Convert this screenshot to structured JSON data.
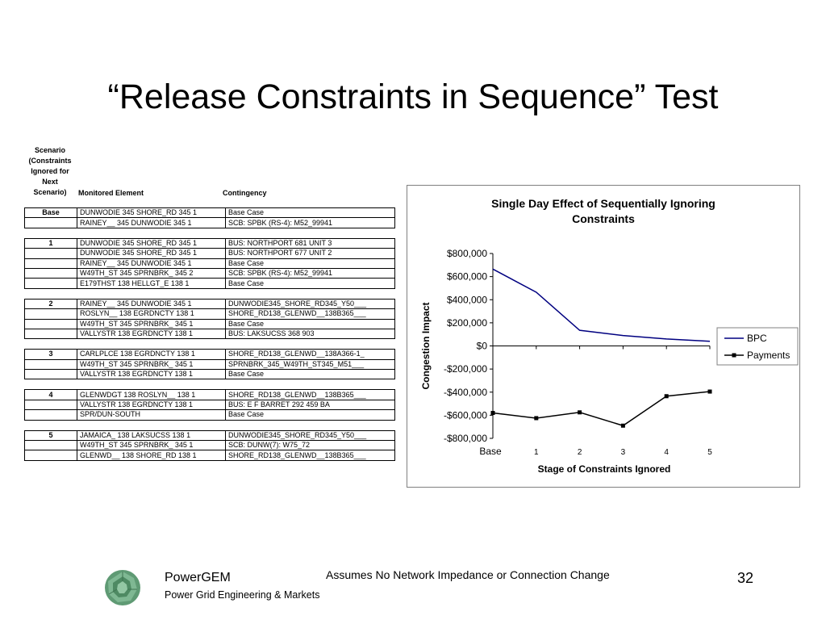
{
  "slide": {
    "title": "“Release Constraints in Sequence” Test",
    "footnote": "Assumes No Network Impedance or Connection Change",
    "page_number": "32"
  },
  "company": {
    "name": "PowerGEM",
    "tagline": "Power Grid Engineering & Markets",
    "logo_icon": "green-gem-logo-icon"
  },
  "table": {
    "header_scenario_lines": [
      "Scenario",
      "(Constraints",
      "Ignored for",
      "Next",
      "Scenario)"
    ],
    "header_monitored": "Monitored Element",
    "header_contingency": "Contingency",
    "groups": [
      {
        "scenario": "Base",
        "rows": [
          {
            "monitored": "DUNWODIE 345 SHORE_RD 345 1",
            "contingency": "Base Case"
          },
          {
            "monitored": "RAINEY__ 345 DUNWODIE 345 1",
            "contingency": "SCB: SPBK (RS-4): M52_99941"
          }
        ]
      },
      {
        "scenario": "1",
        "rows": [
          {
            "monitored": "DUNWODIE 345 SHORE_RD 345 1",
            "contingency": "BUS:  NORTHPORT  681  UNIT 3"
          },
          {
            "monitored": "DUNWODIE 345 SHORE_RD 345 1",
            "contingency": "BUS:  NORTHPORT  677  UNIT 2"
          },
          {
            "monitored": "RAINEY__ 345 DUNWODIE 345 1",
            "contingency": "Base Case"
          },
          {
            "monitored": "W49TH_ST 345 SPRNBRK_ 345 2",
            "contingency": "SCB: SPBK (RS-4): M52_99941"
          },
          {
            "monitored": "E179THST 138 HELLGT_E 138 1",
            "contingency": "Base Case"
          }
        ]
      },
      {
        "scenario": "2",
        "rows": [
          {
            "monitored": "RAINEY__ 345 DUNWODIE 345 1",
            "contingency": "DUNWODIE345_SHORE_RD345_Y50___"
          },
          {
            "monitored": "ROSLYN__ 138 EGRDNCTY 138 1",
            "contingency": "SHORE_RD138_GLENWD__138B365___"
          },
          {
            "monitored": "W49TH_ST 345 SPRNBRK_ 345 1",
            "contingency": "Base Case"
          },
          {
            "monitored": "VALLYSTR 138 EGRDNCTY 138 1",
            "contingency": "BUS:  LAKSUCSS  368  903"
          }
        ]
      },
      {
        "scenario": "3",
        "rows": [
          {
            "monitored": "CARLPLCE 138 EGRDNCTY 138 1",
            "contingency": "SHORE_RD138_GLENWD__138A366-1_"
          },
          {
            "monitored": "W49TH_ST 345 SPRNBRK_ 345 1",
            "contingency": "SPRNBRK_345_W49TH_ST345_M51___"
          },
          {
            "monitored": "VALLYSTR 138 EGRDNCTY 138 1",
            "contingency": "Base Case"
          }
        ]
      },
      {
        "scenario": "4",
        "rows": [
          {
            "monitored": "GLENWDGT 138 ROSLYN__ 138 1",
            "contingency": "SHORE_RD138_GLENWD__138B365___"
          },
          {
            "monitored": "VALLYSTR 138 EGRDNCTY 138 1",
            "contingency": "BUS:  E F BARRET  292  459  BA"
          },
          {
            "monitored": "SPR/DUN-SOUTH",
            "contingency": "Base Case"
          }
        ]
      },
      {
        "scenario": "5",
        "rows": [
          {
            "monitored": "JAMAICA_ 138 LAKSUCSS 138 1",
            "contingency": "DUNWODIE345_SHORE_RD345_Y50___"
          },
          {
            "monitored": "W49TH_ST 345 SPRNBRK_ 345 1",
            "contingency": "SCB: DUNW(7): W75_72"
          },
          {
            "monitored": "GLENWD__ 138 SHORE_RD 138 1",
            "contingency": "SHORE_RD138_GLENWD__138B365___"
          }
        ]
      }
    ]
  },
  "chart_data": {
    "type": "line",
    "title": "Single Day Effect of Sequentially Ignoring Constraints",
    "xlabel": "Stage of Constraints Ignored",
    "ylabel": "Congestion Impact",
    "categories": [
      "Base",
      "1",
      "2",
      "3",
      "4",
      "5"
    ],
    "ylim": [
      -800000,
      800000
    ],
    "yticks": [
      800000,
      600000,
      400000,
      200000,
      0,
      -200000,
      -400000,
      -600000,
      -800000
    ],
    "ytick_labels": [
      "$800,000",
      "$600,000",
      "$400,000",
      "$200,000",
      "$0",
      "-$200,000",
      "-$400,000",
      "-$600,000",
      "-$800,000"
    ],
    "grid": false,
    "legend": "right",
    "series": [
      {
        "name": "BPC",
        "values": [
          665000,
          465000,
          135000,
          90000,
          60000,
          40000
        ],
        "color": "#000080",
        "marker": "none"
      },
      {
        "name": "Payments",
        "values": [
          -580000,
          -625000,
          -575000,
          -690000,
          -435000,
          -395000
        ],
        "color": "#000000",
        "marker": "square"
      }
    ]
  }
}
